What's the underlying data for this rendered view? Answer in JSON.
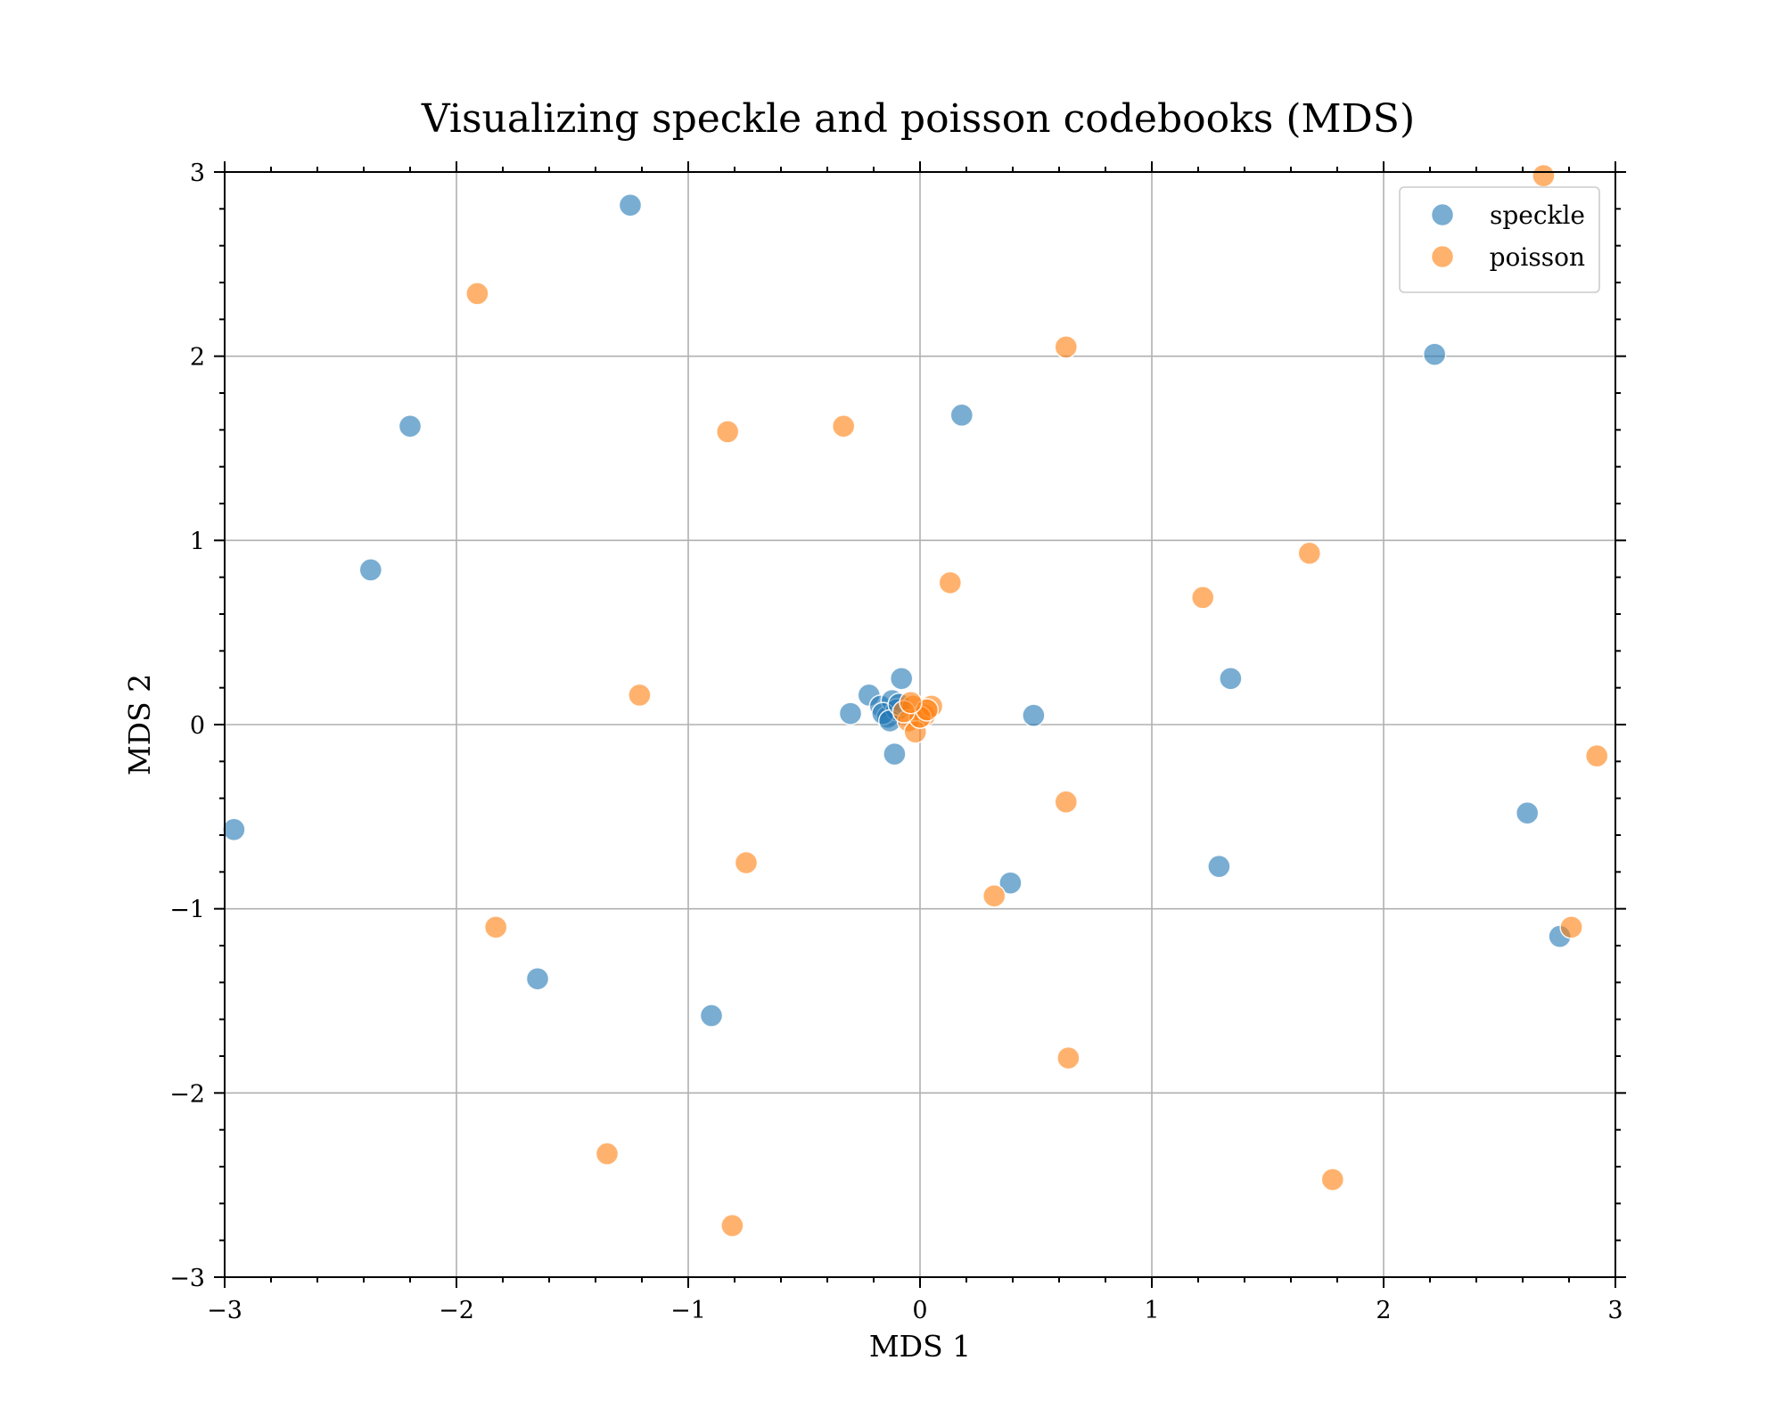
{
  "chart_data": {
    "type": "scatter",
    "title": "Visualizing speckle and poisson codebooks (MDS)",
    "xlabel": "MDS 1",
    "ylabel": "MDS 2",
    "xlim": [
      -3,
      3
    ],
    "ylim": [
      -3,
      3
    ],
    "xticks": [
      -3,
      -2,
      -1,
      0,
      1,
      2,
      3
    ],
    "yticks": [
      -3,
      -2,
      -1,
      0,
      1,
      2,
      3
    ],
    "xtick_labels": [
      "−3",
      "−2",
      "−1",
      "0",
      "1",
      "2",
      "3"
    ],
    "ytick_labels": [
      "−3",
      "−2",
      "−1",
      "0",
      "1",
      "2",
      "3"
    ],
    "grid": true,
    "legend_position": "top-right",
    "series": [
      {
        "name": "speckle",
        "color": "#1f77b4",
        "points": [
          [
            -1.25,
            2.82
          ],
          [
            -2.2,
            1.62
          ],
          [
            -2.37,
            0.84
          ],
          [
            -2.96,
            -0.57
          ],
          [
            0.18,
            1.68
          ],
          [
            2.22,
            2.01
          ],
          [
            1.34,
            0.25
          ],
          [
            0.49,
            0.05
          ],
          [
            2.62,
            -0.48
          ],
          [
            2.76,
            -1.15
          ],
          [
            1.29,
            -0.77
          ],
          [
            0.39,
            -0.86
          ],
          [
            -1.65,
            -1.38
          ],
          [
            -0.9,
            -1.58
          ],
          [
            -0.3,
            0.06
          ],
          [
            -0.22,
            0.16
          ],
          [
            -0.08,
            0.25
          ],
          [
            -0.11,
            -0.16
          ],
          [
            -0.17,
            0.1
          ],
          [
            -0.14,
            0.04
          ],
          [
            -0.12,
            0.13
          ],
          [
            -0.1,
            0.08
          ],
          [
            -0.16,
            0.06
          ],
          [
            -0.13,
            0.02
          ],
          [
            -0.09,
            0.11
          ]
        ]
      },
      {
        "name": "poisson",
        "color": "#ff7f0e",
        "points": [
          [
            2.69,
            2.98
          ],
          [
            -1.91,
            2.34
          ],
          [
            0.63,
            2.05
          ],
          [
            -0.83,
            1.59
          ],
          [
            -0.33,
            1.62
          ],
          [
            1.68,
            0.93
          ],
          [
            1.22,
            0.69
          ],
          [
            0.13,
            0.77
          ],
          [
            -1.21,
            0.16
          ],
          [
            2.92,
            -0.17
          ],
          [
            0.63,
            -0.42
          ],
          [
            -0.75,
            -0.75
          ],
          [
            0.32,
            -0.93
          ],
          [
            -1.83,
            -1.1
          ],
          [
            2.81,
            -1.1
          ],
          [
            0.64,
            -1.81
          ],
          [
            -1.35,
            -2.33
          ],
          [
            1.78,
            -2.47
          ],
          [
            -0.81,
            -2.72
          ],
          [
            -0.03,
            0.1
          ],
          [
            0.02,
            0.05
          ],
          [
            -0.05,
            0.02
          ],
          [
            0.05,
            0.1
          ],
          [
            -0.02,
            -0.04
          ],
          [
            0.0,
            0.04
          ],
          [
            -0.07,
            0.07
          ],
          [
            0.03,
            0.08
          ],
          [
            -0.04,
            0.12
          ]
        ]
      }
    ]
  }
}
